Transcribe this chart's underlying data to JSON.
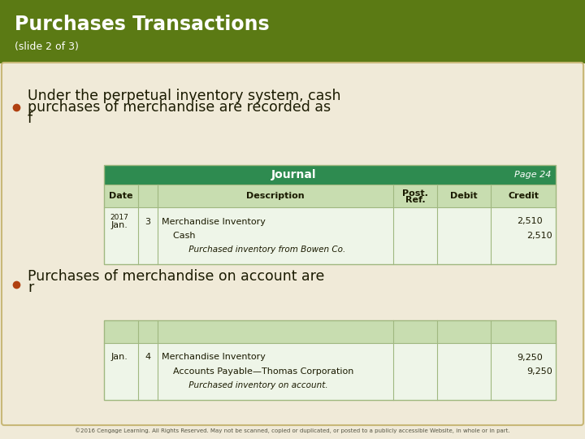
{
  "title": "Purchases Transactions",
  "subtitle": "(slide 2 of 3)",
  "header_bg": "#5b7a14",
  "header_text_color": "#ffffff",
  "body_bg": "#f0ead8",
  "slide_border_color": "#c8b878",
  "bullet_color": "#b04010",
  "bullet1_line1": "Under the perpetual inventory system, cash",
  "bullet1_line2": "purchases of merchandise are recorded as",
  "bullet1_line3": "f",
  "bullet2_line1": "Purchases of merchandise on account are",
  "bullet2_line2": "r",
  "journal_header_bg": "#2e8b50",
  "journal_header_text": "#ffffff",
  "journal_col_header_bg": "#c8ddb0",
  "journal_row_bg": "#eef5e8",
  "journal_border": "#a0b880",
  "journal1_title": "Journal",
  "journal1_page": "Page 24",
  "journal1_date_year": "2017",
  "journal1_date_month": "Jan.",
  "journal1_date_day": "3",
  "journal1_row1_desc": "Merchandise Inventory",
  "journal1_row1_debit": "2,510",
  "journal1_row2_desc": "  Cash",
  "journal1_row2_credit": "2,510",
  "journal1_row3_desc": "     Purchased inventory from Bowen Co.",
  "journal2_date_month": "Jan.",
  "journal2_date_day": "4",
  "journal2_row1_desc": "Merchandise Inventory",
  "journal2_row1_debit": "9,250",
  "journal2_row2_desc": "  Accounts Payable—Thomas Corporation",
  "journal2_row2_credit": "9,250",
  "journal2_row3_desc": "     Purchased inventory on account.",
  "footer_text": "©2016 Cengage Learning. All Rights Reserved. May not be scanned, copied or duplicated, or posted to a publicly accessible Website, in whole or in part.",
  "footer_color": "#555544",
  "text_color": "#333322",
  "dark_text": "#1a1a00"
}
